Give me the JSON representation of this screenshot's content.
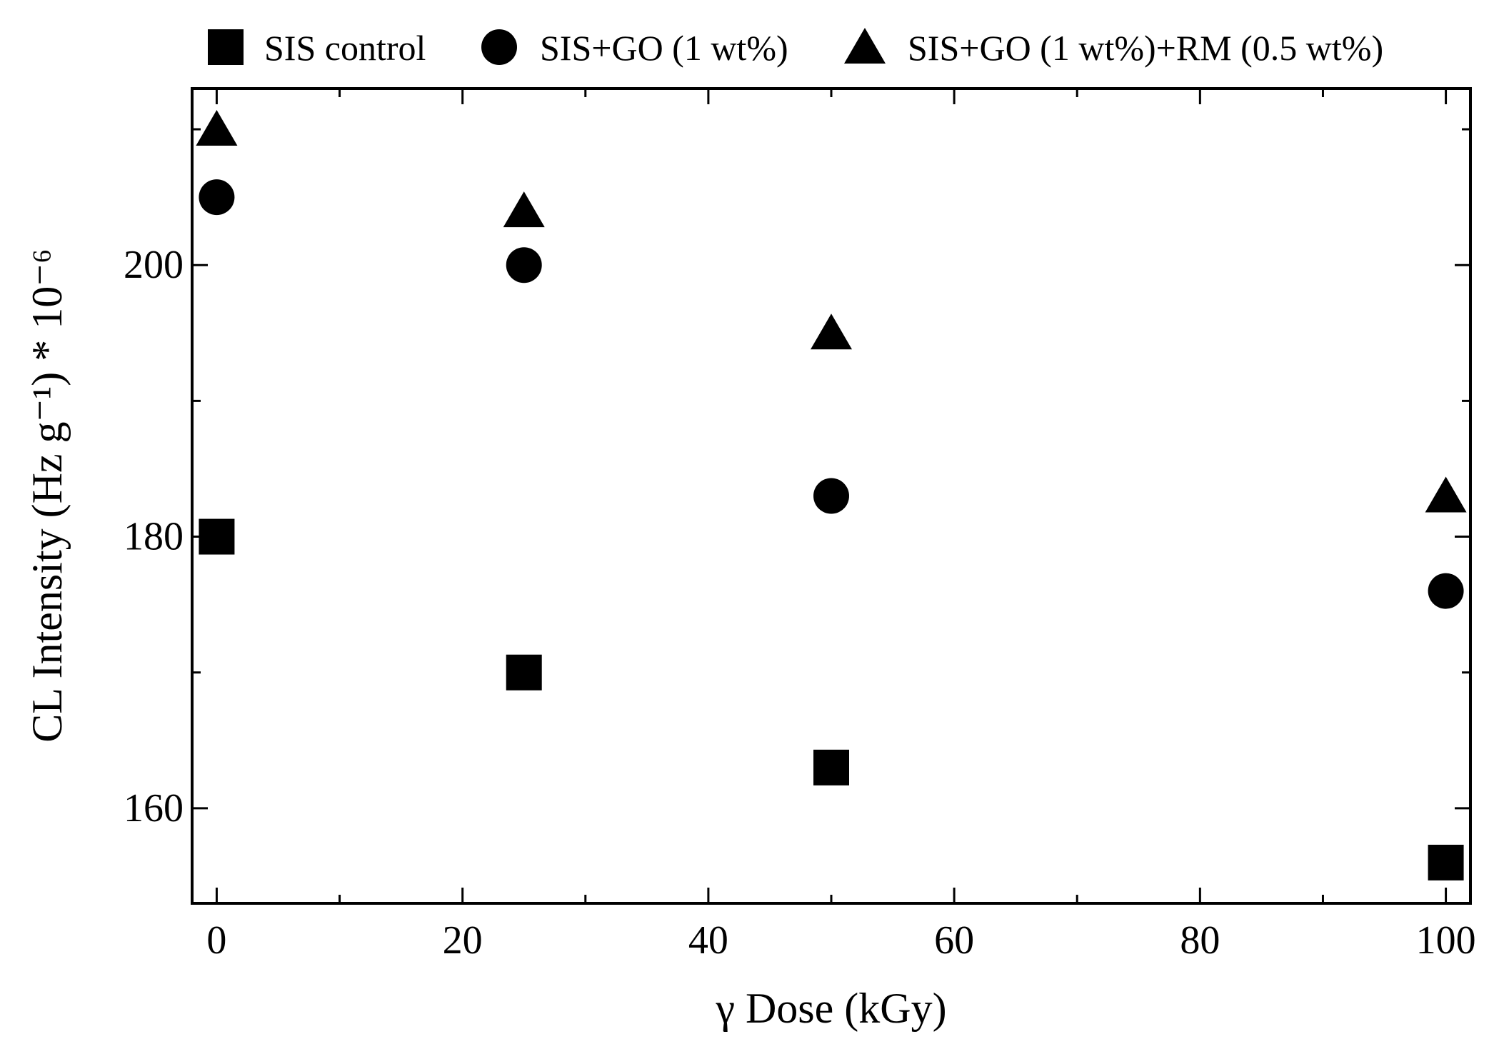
{
  "chart_data": {
    "type": "scatter",
    "xlabel": "γ Dose (kGy)",
    "ylabel": "CL Intensity (Hz g⁻¹) * 10⁻⁶",
    "xlim": [
      -2,
      102
    ],
    "ylim": [
      153,
      213
    ],
    "x_ticks": [
      0,
      20,
      40,
      60,
      80,
      100
    ],
    "y_ticks": [
      160,
      180,
      200
    ],
    "grid": false,
    "legend_position": "top",
    "series": [
      {
        "name": "SIS control",
        "marker": "square",
        "color": "#000000",
        "x": [
          0,
          25,
          50,
          100
        ],
        "y": [
          180,
          170,
          163,
          156
        ]
      },
      {
        "name": "SIS+GO (1 wt%)",
        "marker": "circle",
        "color": "#000000",
        "x": [
          0,
          25,
          50,
          100
        ],
        "y": [
          205,
          200,
          183,
          176
        ]
      },
      {
        "name": "SIS+GO (1 wt%)+RM (0.5 wt%)",
        "marker": "triangle",
        "color": "#000000",
        "x": [
          0,
          25,
          50,
          100
        ],
        "y": [
          210,
          204,
          195,
          183
        ]
      }
    ]
  }
}
